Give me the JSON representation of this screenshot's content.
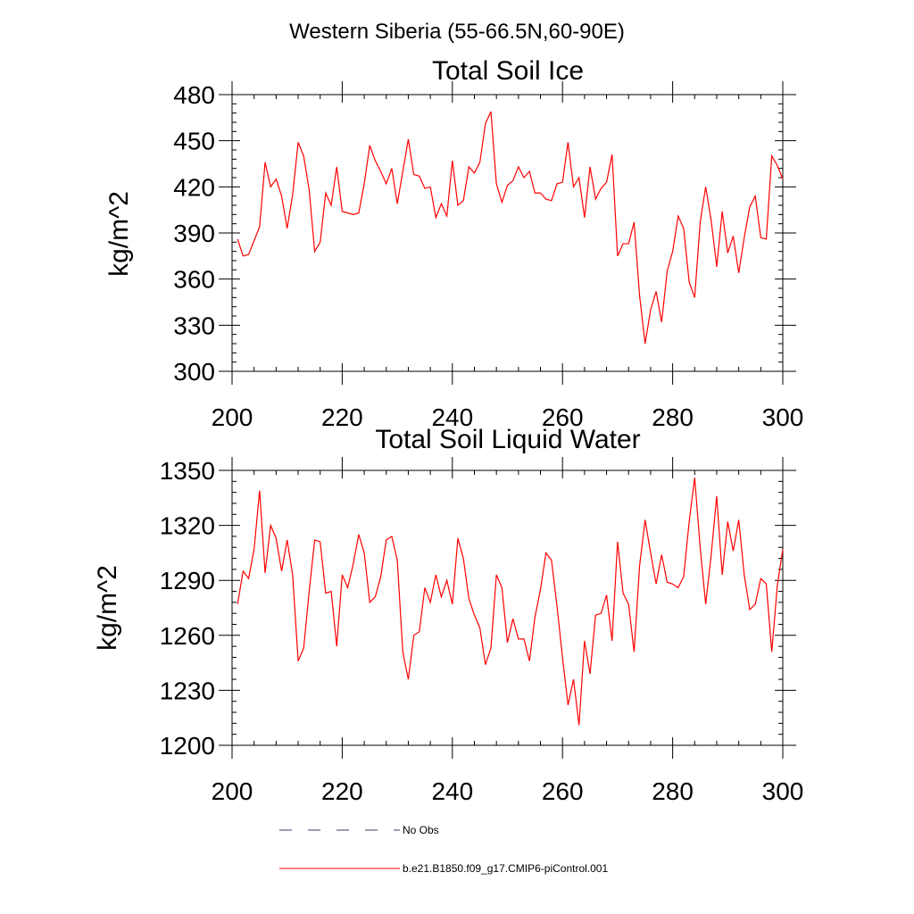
{
  "figure": {
    "supertitle": "Western Siberia (55-66.5N,60-90E)"
  },
  "legend": {
    "obs_label": "No Obs",
    "obs_color": "#3b3b6b",
    "model_label": "b.e21.B1850.f09_g17.CMIP6-piControl.001",
    "model_color": "#ff0000"
  },
  "chart_data": [
    {
      "type": "line",
      "title": "Total Soil Ice",
      "ylabel": "kg/m^2",
      "xlim": [
        200,
        300
      ],
      "ylim": [
        300,
        480
      ],
      "xticks": [
        "200",
        "220",
        "240",
        "260",
        "280",
        "300"
      ],
      "yticks": [
        "300",
        "330",
        "360",
        "390",
        "420",
        "450",
        "480"
      ],
      "x_start": 201,
      "series": [
        {
          "color": "#ff0000",
          "values": [
            386,
            375,
            376,
            385,
            394,
            436,
            420,
            425,
            414,
            393,
            415,
            449,
            440,
            418,
            378,
            384,
            416,
            408,
            433,
            404,
            403,
            402,
            403,
            422,
            447,
            437,
            430,
            422,
            432,
            409,
            430,
            451,
            428,
            427,
            419,
            420,
            400,
            409,
            401,
            437,
            408,
            411,
            433,
            429,
            436,
            461,
            469,
            422,
            410,
            421,
            424,
            433,
            426,
            430,
            416,
            416,
            412,
            411,
            422,
            423,
            449,
            420,
            426,
            400,
            433,
            412,
            419,
            423,
            441,
            375,
            383,
            383,
            397,
            349,
            318,
            340,
            352,
            332,
            365,
            378,
            401,
            393,
            358,
            348,
            397,
            420,
            398,
            368,
            404,
            377,
            388,
            364,
            387,
            407,
            414,
            387,
            386,
            440,
            434,
            425
          ]
        }
      ]
    },
    {
      "type": "line",
      "title": "Total Soil Liquid Water",
      "ylabel": "kg/m^2",
      "xlim": [
        200,
        300
      ],
      "ylim": [
        1200,
        1350
      ],
      "xticks": [
        "200",
        "220",
        "240",
        "260",
        "280",
        "300"
      ],
      "yticks": [
        "1200",
        "1230",
        "1260",
        "1290",
        "1320",
        "1350"
      ],
      "x_start": 201,
      "series": [
        {
          "color": "#ff0000",
          "values": [
            1277,
            1295,
            1291,
            1307,
            1339,
            1294,
            1320,
            1313,
            1295,
            1312,
            1293,
            1246,
            1253,
            1284,
            1312,
            1311,
            1283,
            1284,
            1254,
            1293,
            1286,
            1299,
            1315,
            1305,
            1278,
            1281,
            1292,
            1312,
            1314,
            1301,
            1251,
            1236,
            1260,
            1262,
            1286,
            1278,
            1293,
            1281,
            1290,
            1277,
            1313,
            1302,
            1280,
            1271,
            1264,
            1244,
            1253,
            1293,
            1286,
            1256,
            1269,
            1258,
            1258,
            1246,
            1270,
            1285,
            1305,
            1301,
            1276,
            1248,
            1222,
            1236,
            1211,
            1257,
            1239,
            1271,
            1272,
            1282,
            1257,
            1311,
            1283,
            1277,
            1251,
            1298,
            1323,
            1305,
            1288,
            1304,
            1289,
            1288,
            1286,
            1292,
            1322,
            1346,
            1308,
            1277,
            1304,
            1336,
            1293,
            1322,
            1306,
            1323,
            1293,
            1274,
            1277,
            1291,
            1288,
            1251,
            1287,
            1307
          ]
        }
      ]
    }
  ]
}
